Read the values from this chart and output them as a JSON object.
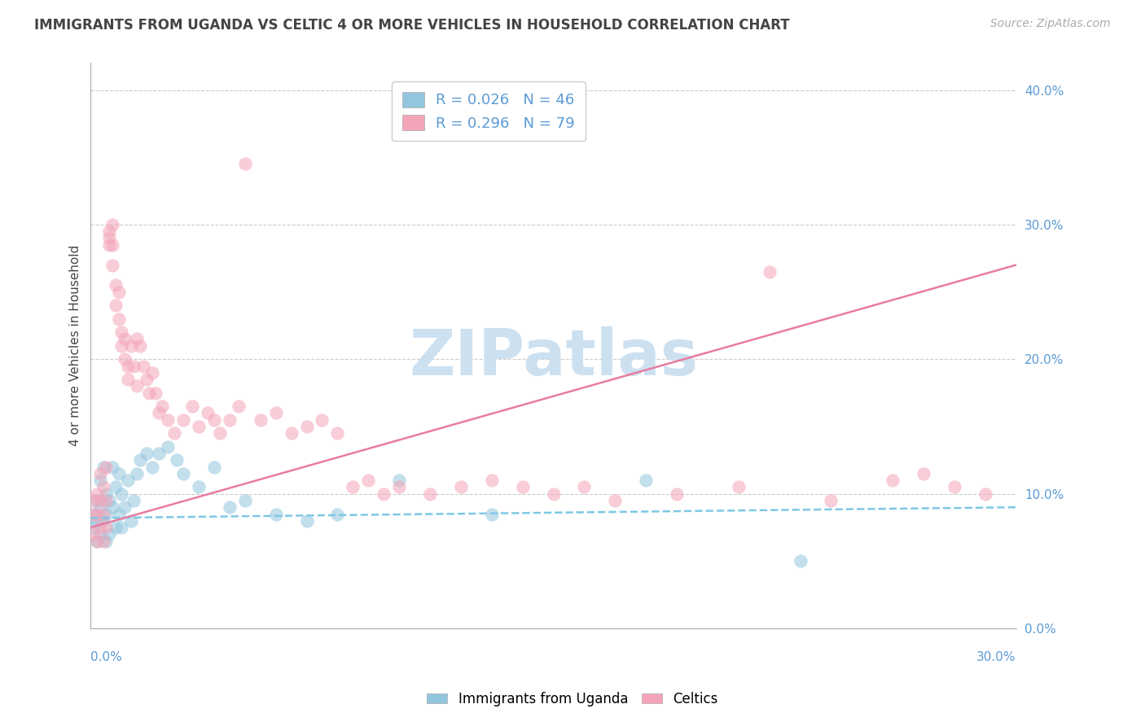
{
  "title": "IMMIGRANTS FROM UGANDA VS CELTIC 4 OR MORE VEHICLES IN HOUSEHOLD CORRELATION CHART",
  "source": "Source: ZipAtlas.com",
  "ylabel": "4 or more Vehicles in Household",
  "blue_label": "Immigrants from Uganda",
  "pink_label": "Celtics",
  "blue_R": 0.026,
  "blue_N": 46,
  "pink_R": 0.296,
  "pink_N": 79,
  "blue_color": "#92c5de",
  "pink_color": "#f4a4b8",
  "blue_line_color": "#7ec8e3",
  "pink_line_color": "#e87ca0",
  "watermark": "ZIPatlas",
  "watermark_color": "#cce0f0",
  "grid_color": "#cccccc",
  "axis_color": "#aaaaaa",
  "tick_color": "#5b9bd5",
  "text_color": "#444444",
  "source_color": "#aaaaaa",
  "background_color": "#ffffff",
  "xlim": [
    0.0,
    0.3
  ],
  "ylim": [
    0.0,
    0.42
  ],
  "y_ticks": [
    0.0,
    0.1,
    0.2,
    0.3,
    0.4
  ],
  "y_tick_labels": [
    "0.0%",
    "10.0%",
    "20.0%",
    "30.0%",
    "40.0%"
  ],
  "x_tick_labels": [
    "0.0%",
    "30.0%"
  ],
  "blue_scatter_x": [
    0.001,
    0.001,
    0.002,
    0.002,
    0.002,
    0.003,
    0.003,
    0.003,
    0.004,
    0.004,
    0.005,
    0.005,
    0.005,
    0.006,
    0.006,
    0.007,
    0.007,
    0.008,
    0.008,
    0.009,
    0.009,
    0.01,
    0.01,
    0.011,
    0.012,
    0.013,
    0.014,
    0.015,
    0.016,
    0.018,
    0.02,
    0.022,
    0.025,
    0.028,
    0.03,
    0.035,
    0.04,
    0.045,
    0.05,
    0.06,
    0.07,
    0.08,
    0.1,
    0.13,
    0.18,
    0.23
  ],
  "blue_scatter_y": [
    0.085,
    0.075,
    0.095,
    0.08,
    0.065,
    0.11,
    0.09,
    0.07,
    0.12,
    0.08,
    0.1,
    0.085,
    0.065,
    0.095,
    0.07,
    0.12,
    0.09,
    0.105,
    0.075,
    0.115,
    0.085,
    0.1,
    0.075,
    0.09,
    0.11,
    0.08,
    0.095,
    0.115,
    0.125,
    0.13,
    0.12,
    0.13,
    0.135,
    0.125,
    0.115,
    0.105,
    0.12,
    0.09,
    0.095,
    0.085,
    0.08,
    0.085,
    0.11,
    0.085,
    0.11,
    0.05
  ],
  "pink_scatter_x": [
    0.001,
    0.001,
    0.001,
    0.002,
    0.002,
    0.002,
    0.003,
    0.003,
    0.003,
    0.004,
    0.004,
    0.004,
    0.005,
    0.005,
    0.005,
    0.006,
    0.006,
    0.006,
    0.007,
    0.007,
    0.007,
    0.008,
    0.008,
    0.009,
    0.009,
    0.01,
    0.01,
    0.011,
    0.011,
    0.012,
    0.012,
    0.013,
    0.014,
    0.015,
    0.015,
    0.016,
    0.017,
    0.018,
    0.019,
    0.02,
    0.021,
    0.022,
    0.023,
    0.025,
    0.027,
    0.03,
    0.033,
    0.035,
    0.038,
    0.04,
    0.042,
    0.045,
    0.048,
    0.05,
    0.055,
    0.06,
    0.065,
    0.07,
    0.075,
    0.08,
    0.085,
    0.09,
    0.095,
    0.1,
    0.11,
    0.12,
    0.13,
    0.14,
    0.15,
    0.16,
    0.17,
    0.19,
    0.21,
    0.22,
    0.24,
    0.26,
    0.27,
    0.28,
    0.29
  ],
  "pink_scatter_y": [
    0.085,
    0.095,
    0.07,
    0.1,
    0.085,
    0.065,
    0.115,
    0.095,
    0.075,
    0.105,
    0.085,
    0.065,
    0.12,
    0.095,
    0.075,
    0.29,
    0.295,
    0.285,
    0.3,
    0.285,
    0.27,
    0.255,
    0.24,
    0.25,
    0.23,
    0.22,
    0.21,
    0.2,
    0.215,
    0.195,
    0.185,
    0.21,
    0.195,
    0.215,
    0.18,
    0.21,
    0.195,
    0.185,
    0.175,
    0.19,
    0.175,
    0.16,
    0.165,
    0.155,
    0.145,
    0.155,
    0.165,
    0.15,
    0.16,
    0.155,
    0.145,
    0.155,
    0.165,
    0.345,
    0.155,
    0.16,
    0.145,
    0.15,
    0.155,
    0.145,
    0.105,
    0.11,
    0.1,
    0.105,
    0.1,
    0.105,
    0.11,
    0.105,
    0.1,
    0.105,
    0.095,
    0.1,
    0.105,
    0.265,
    0.095,
    0.11,
    0.115,
    0.105,
    0.1
  ],
  "blue_line_x": [
    0.0,
    0.3
  ],
  "blue_line_y": [
    0.082,
    0.09
  ],
  "pink_line_x": [
    0.0,
    0.3
  ],
  "pink_line_y": [
    0.075,
    0.27
  ]
}
